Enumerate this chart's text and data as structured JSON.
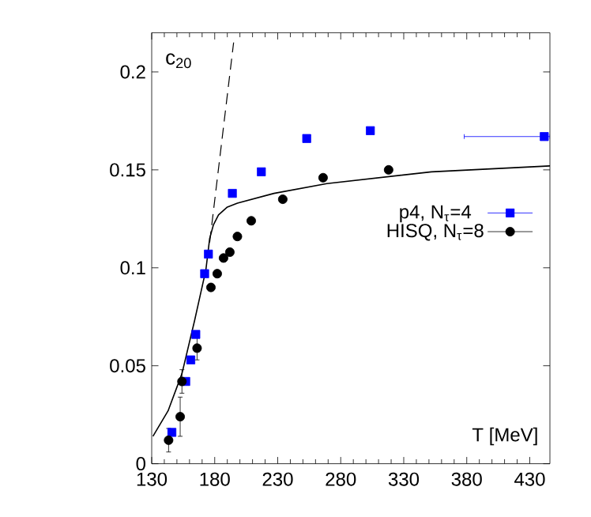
{
  "chart_data": {
    "type": "scatter",
    "xlabel": "T [MeV]",
    "annotations": [
      "c$_{20}$"
    ],
    "xlim": [
      130,
      446
    ],
    "ylim": [
      0,
      0.22
    ],
    "xticks": [
      130,
      180,
      230,
      280,
      330,
      380,
      430
    ],
    "yticks": [
      0,
      0.05,
      0.1,
      0.15,
      0.2
    ],
    "legend": "right",
    "series": [
      {
        "name": "p4, N$_{τ}$=4",
        "color": "#0000ff",
        "marker": "square",
        "x": [
          146,
          157,
          161,
          165,
          172,
          175,
          194,
          217,
          253,
          303.5,
          441.5
        ],
        "values": [
          0.016,
          0.042,
          0.053,
          0.066,
          0.097,
          0.107,
          0.138,
          0.149,
          0.166,
          0.17,
          0.167
        ],
        "xerrors": [
          null,
          null,
          null,
          null,
          null,
          null,
          null,
          null,
          null,
          null,
          [
            378,
            446
          ]
        ]
      },
      {
        "name": "HISQ, N$_{τ}$=8",
        "color": "#000000",
        "marker": "circle",
        "x": [
          143.4,
          152.6,
          154,
          166,
          177,
          182,
          187,
          192,
          198,
          209,
          234,
          266,
          318
        ],
        "values": [
          0.012,
          0.024,
          0.042,
          0.059,
          0.09,
          0.097,
          0.105,
          0.108,
          0.116,
          0.124,
          0.135,
          0.146,
          0.15
        ],
        "errors": [
          0.006,
          0.01,
          0.006,
          0.006,
          null,
          null,
          null,
          null,
          null,
          null,
          null,
          null,
          null
        ]
      },
      {
        "type": "line",
        "color": "#000000",
        "line_style": "solid",
        "x": [
          131,
          143,
          154,
          164,
          173,
          176,
          179,
          183,
          190,
          198,
          227,
          269,
          352,
          446
        ],
        "values": [
          0.014,
          0.027,
          0.046,
          0.073,
          0.099,
          0.115,
          0.122,
          0.127,
          0.131,
          0.133,
          0.138,
          0.143,
          0.149,
          0.152
        ]
      },
      {
        "type": "line",
        "color": "#000000",
        "line_style": "dashed",
        "x": [
          176,
          195
        ],
        "values": [
          0.113,
          0.215
        ]
      }
    ]
  }
}
